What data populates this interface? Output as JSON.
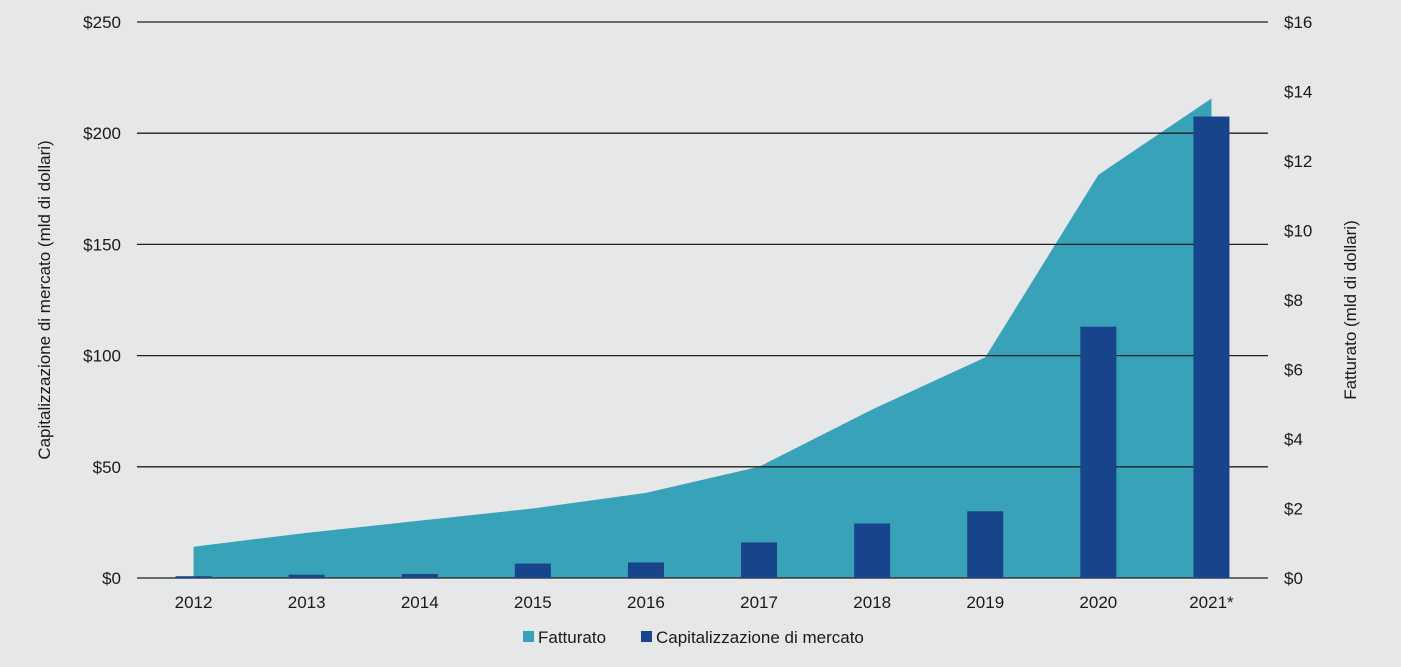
{
  "chart_data": {
    "type": "bar",
    "categories": [
      "2012",
      "2013",
      "2014",
      "2015",
      "2016",
      "2017",
      "2018",
      "2019",
      "2020",
      "2021*"
    ],
    "series": [
      {
        "name": "Fatturato",
        "type": "area",
        "axis": "right",
        "color": "#38a2b8",
        "values": [
          0.9,
          1.3,
          1.65,
          2.0,
          2.45,
          3.2,
          4.85,
          6.35,
          11.6,
          13.8
        ]
      },
      {
        "name": "Capitalizzazione di mercato",
        "type": "bar",
        "axis": "left",
        "color": "#18448b",
        "values": [
          0.8,
          1.5,
          1.8,
          6.5,
          7.0,
          16.0,
          24.5,
          30.0,
          113.0,
          207.5
        ]
      }
    ],
    "ylabel": "Capitalizzazione di mercato (mld di dollari)",
    "ylabel_right": "Fatturato (mld di dollari)",
    "ylim": [
      0,
      250
    ],
    "ylim_right": [
      0,
      16
    ],
    "yticks": [
      "$0",
      "$50",
      "$100",
      "$150",
      "$200",
      "$250"
    ],
    "yticks_right": [
      "$0",
      "$2",
      "$4",
      "$6",
      "$8",
      "$10",
      "$12",
      "$14",
      "$16"
    ],
    "grid": true,
    "legend": "bottom-center"
  }
}
